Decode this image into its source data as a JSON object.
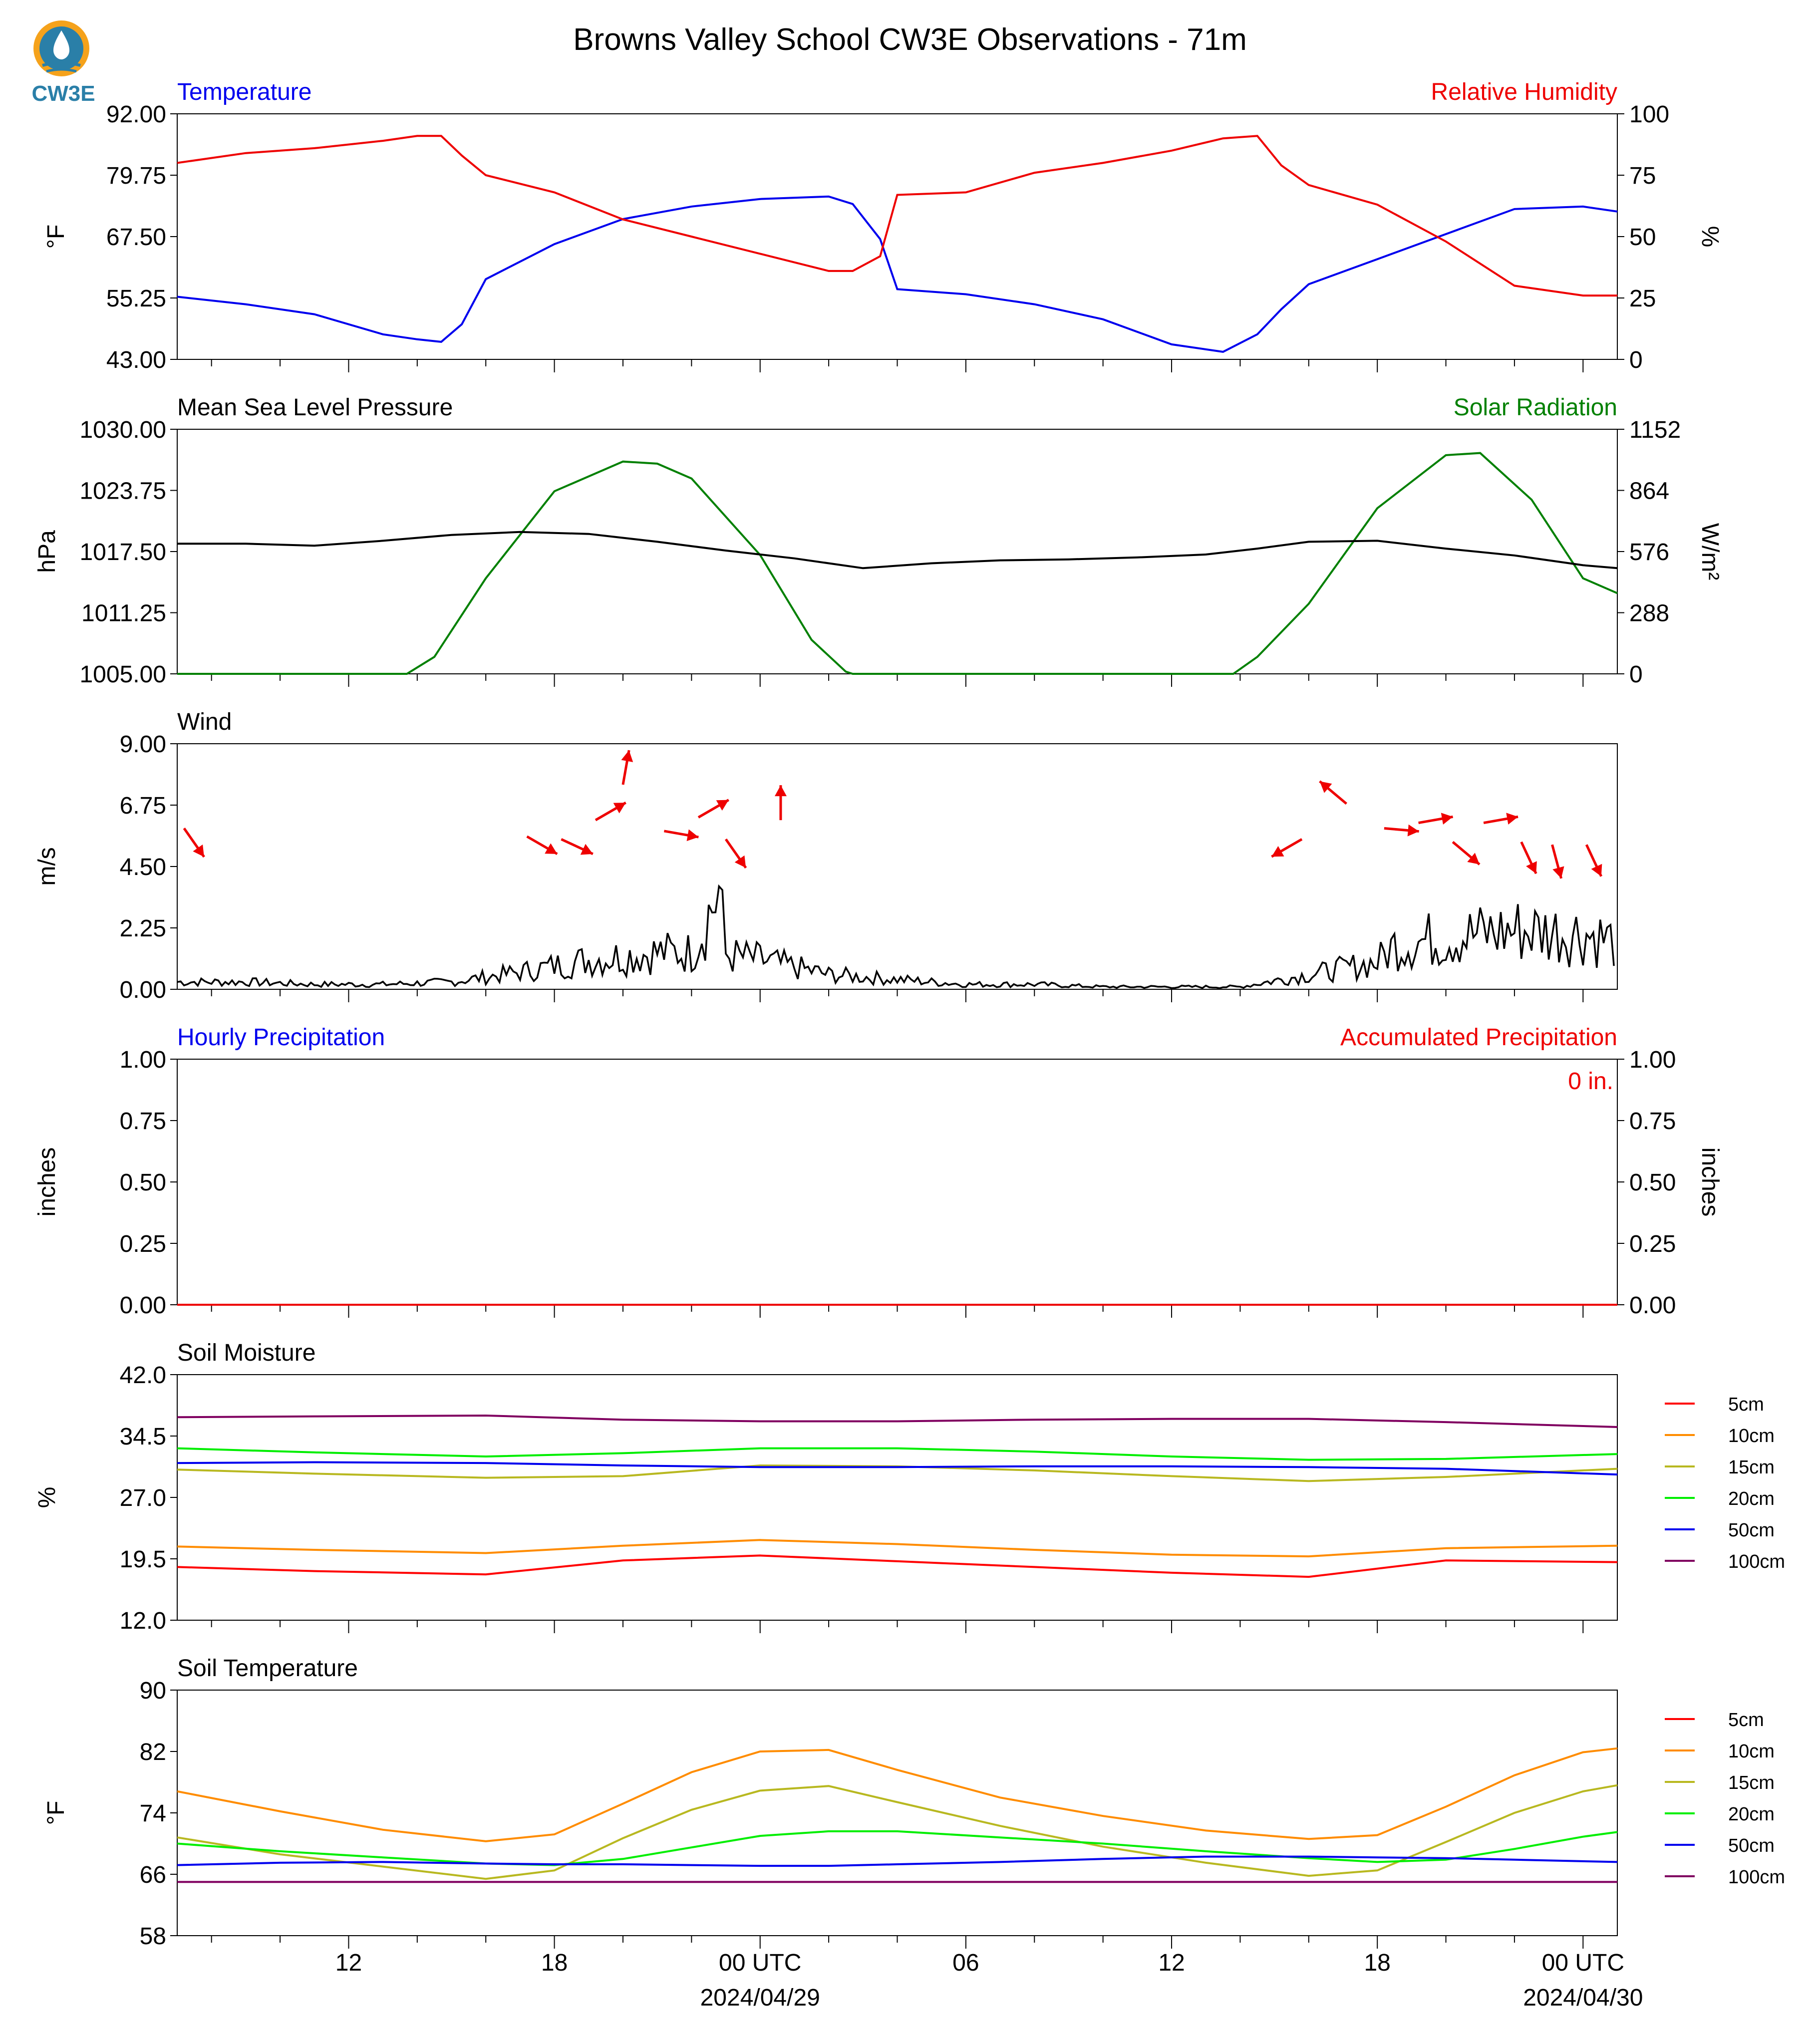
{
  "title": "Browns Valley School CW3E Observations - 71m",
  "logo_text": "CW3E",
  "time_axis": {
    "tick_labels": [
      "12",
      "18",
      "00 UTC",
      "06",
      "12",
      "18",
      "00 UTC"
    ],
    "date_labels": [
      "2024/04/29",
      "2024/04/30"
    ]
  },
  "colors": {
    "temperature": "#0000ee",
    "humidity": "#ee0000",
    "pressure": "#000000",
    "solar": "#008000",
    "wind": "#000000",
    "wind_arrow": "#ee0000",
    "depth_5cm": "#ff0000",
    "depth_10cm": "#ff8c00",
    "depth_15cm": "#b8b820",
    "depth_20cm": "#00ee00",
    "depth_50cm": "#0000ee",
    "depth_100cm": "#800060"
  },
  "chart_data": [
    {
      "id": "temp_rh",
      "type": "line",
      "left_title": "Temperature",
      "right_title": "Relative Humidity",
      "ylabel": "°F",
      "ylabel_right": "%",
      "ylim": [
        43,
        92
      ],
      "ylim_right": [
        0,
        100
      ],
      "yticks": [
        "43.00",
        "55.25",
        "67.50",
        "79.75",
        "92.00"
      ],
      "yticks_right": [
        "0",
        "25",
        "50",
        "75",
        "100"
      ],
      "x_hours": [
        7,
        9,
        11,
        13,
        14,
        14.7,
        15.3,
        16,
        18,
        20,
        22,
        24,
        26,
        26.7,
        27.5,
        28,
        30,
        32,
        34,
        36,
        37.5,
        38.5,
        39.2,
        40,
        42,
        44,
        46,
        48,
        49
      ],
      "series": [
        {
          "name": "Temperature",
          "values": [
            55.5,
            54,
            52,
            48,
            47,
            46.5,
            50,
            59,
            66,
            71,
            73.5,
            75,
            75.5,
            74,
            67,
            57,
            56,
            54,
            51,
            46,
            44.5,
            48,
            53,
            58,
            63,
            68,
            73,
            73.5,
            72.5
          ]
        },
        {
          "name": "Relative Humidity",
          "values": [
            80,
            84,
            86,
            89,
            91,
            91,
            83,
            75,
            68,
            57,
            50,
            43,
            36,
            36,
            42,
            67,
            68,
            76,
            80,
            85,
            90,
            91,
            79,
            71,
            63,
            48,
            30,
            26,
            26
          ]
        }
      ]
    },
    {
      "id": "pressure_solar",
      "type": "line",
      "left_title": "Mean Sea Level Pressure",
      "right_title": "Solar Radiation",
      "ylabel": "hPa",
      "ylabel_right": "W/m²",
      "ylim": [
        1005,
        1030
      ],
      "ylim_right": [
        0,
        1152
      ],
      "yticks": [
        "1005.00",
        "1011.25",
        "1017.50",
        "1023.75",
        "1030.00"
      ],
      "yticks_right": [
        "0",
        "288",
        "576",
        "864",
        "1152"
      ],
      "x_hours": [
        7,
        9,
        11,
        13,
        15,
        17,
        19,
        21,
        23,
        25,
        27,
        29,
        31,
        33,
        35,
        37,
        38.5,
        40,
        42,
        44,
        46,
        48,
        49
      ],
      "series": [
        {
          "name": "Mean Sea Level Pressure",
          "values": [
            1018.3,
            1018.3,
            1018.1,
            1018.6,
            1019.2,
            1019.5,
            1019.3,
            1018.5,
            1017.6,
            1016.8,
            1015.8,
            1016.3,
            1016.6,
            1016.7,
            1016.9,
            1017.2,
            1017.8,
            1018.5,
            1018.6,
            1017.8,
            1017.1,
            1016.1,
            1015.8
          ]
        },
        {
          "name": "Solar Radiation",
          "values": [
            0,
            0,
            0,
            0,
            0,
            0,
            0,
            0,
            0,
            0,
            0,
            0,
            0,
            0,
            0,
            0,
            0,
            0,
            0,
            0,
            0,
            0,
            0
          ]
        }
      ],
      "solar_x_hours": [
        7,
        13.7,
        14.5,
        16,
        18,
        20,
        21,
        22,
        24,
        25.5,
        26.5,
        26.7,
        28,
        29,
        37.8,
        38.5,
        40,
        42,
        44,
        45,
        46.5,
        48,
        49
      ],
      "solar_values": [
        0,
        0,
        80,
        450,
        860,
        1000,
        990,
        920,
        560,
        160,
        10,
        0,
        0,
        0,
        0,
        80,
        330,
        780,
        1030,
        1040,
        820,
        450,
        380
      ]
    },
    {
      "id": "wind",
      "type": "line",
      "left_title": "Wind",
      "ylabel": "m/s",
      "ylim": [
        0,
        9
      ],
      "yticks": [
        "0.00",
        "2.25",
        "4.50",
        "6.75",
        "9.00"
      ],
      "x_hours": [
        7,
        9,
        11,
        13,
        15,
        17,
        19,
        21,
        22,
        22.8,
        23,
        24,
        26,
        28,
        30,
        32,
        34,
        36,
        38,
        40,
        42,
        42.5,
        44,
        46,
        48,
        49
      ],
      "series": [
        {
          "name": "Wind Speed",
          "values": [
            0.3,
            0.3,
            0.2,
            0.2,
            0.3,
            0.7,
            1.2,
            1.5,
            1.5,
            4.0,
            1.4,
            1.2,
            0.6,
            0.4,
            0.2,
            0.2,
            0.1,
            0.1,
            0.1,
            0.6,
            1.1,
            1.8,
            2.1,
            2.4,
            2.3,
            1.9
          ]
        }
      ],
      "arrows": [
        {
          "x_hour": 7.2,
          "speed": 5.9,
          "dir_deg": 145
        },
        {
          "x_hour": 17.2,
          "speed": 5.6,
          "dir_deg": 120
        },
        {
          "x_hour": 18.2,
          "speed": 5.5,
          "dir_deg": 115
        },
        {
          "x_hour": 19.2,
          "speed": 6.2,
          "dir_deg": 60
        },
        {
          "x_hour": 20,
          "speed": 7.5,
          "dir_deg": 10
        },
        {
          "x_hour": 21.2,
          "speed": 5.8,
          "dir_deg": 100
        },
        {
          "x_hour": 22.2,
          "speed": 6.3,
          "dir_deg": 60
        },
        {
          "x_hour": 23,
          "speed": 5.5,
          "dir_deg": 145
        },
        {
          "x_hour": 24.6,
          "speed": 6.2,
          "dir_deg": 0
        },
        {
          "x_hour": 39.8,
          "speed": 5.5,
          "dir_deg": 240
        },
        {
          "x_hour": 41.1,
          "speed": 6.8,
          "dir_deg": 310
        },
        {
          "x_hour": 42.2,
          "speed": 5.9,
          "dir_deg": 95
        },
        {
          "x_hour": 43.2,
          "speed": 6.1,
          "dir_deg": 80
        },
        {
          "x_hour": 44.2,
          "speed": 5.4,
          "dir_deg": 130
        },
        {
          "x_hour": 45.1,
          "speed": 6.1,
          "dir_deg": 80
        },
        {
          "x_hour": 46.2,
          "speed": 5.4,
          "dir_deg": 155
        },
        {
          "x_hour": 47.1,
          "speed": 5.3,
          "dir_deg": 165
        },
        {
          "x_hour": 48.1,
          "speed": 5.3,
          "dir_deg": 155
        }
      ]
    },
    {
      "id": "precip",
      "type": "line",
      "left_title": "Hourly Precipitation",
      "right_title": "Accumulated Precipitation",
      "ylabel": "inches",
      "ylabel_right": "inches",
      "ylim": [
        0,
        1
      ],
      "ylim_right": [
        0,
        1
      ],
      "yticks": [
        "0.00",
        "0.25",
        "0.50",
        "0.75",
        "1.00"
      ],
      "yticks_right": [
        "0.00",
        "0.25",
        "0.50",
        "0.75",
        "1.00"
      ],
      "annotation": "0 in.",
      "x_hours": [
        7,
        49
      ],
      "series": [
        {
          "name": "Hourly Precipitation",
          "values": [
            0,
            0
          ]
        },
        {
          "name": "Accumulated Precipitation",
          "values": [
            0,
            0
          ]
        }
      ]
    },
    {
      "id": "soil_moisture",
      "type": "line",
      "left_title": "Soil Moisture",
      "ylabel": "%",
      "ylim": [
        12,
        42
      ],
      "yticks": [
        "12.0",
        "19.5",
        "27.0",
        "34.5",
        "42.0"
      ],
      "legend": [
        "5cm",
        "10cm",
        "15cm",
        "20cm",
        "50cm",
        "100cm"
      ],
      "x_hours": [
        7,
        11,
        16,
        20,
        24,
        28,
        32,
        36,
        40,
        44,
        49
      ],
      "series": [
        {
          "name": "5cm",
          "values": [
            18.5,
            18.0,
            17.6,
            19.3,
            19.9,
            19.2,
            18.5,
            17.8,
            17.3,
            19.3,
            19.1
          ]
        },
        {
          "name": "10cm",
          "values": [
            21.0,
            20.6,
            20.2,
            21.1,
            21.8,
            21.3,
            20.6,
            20.0,
            19.8,
            20.8,
            21.1
          ]
        },
        {
          "name": "15cm",
          "values": [
            30.4,
            29.9,
            29.4,
            29.6,
            30.9,
            30.8,
            30.3,
            29.6,
            29.0,
            29.5,
            30.5
          ]
        },
        {
          "name": "20cm",
          "values": [
            33.0,
            32.5,
            32.0,
            32.4,
            33.0,
            33.0,
            32.6,
            32.0,
            31.6,
            31.7,
            32.3
          ]
        },
        {
          "name": "50cm",
          "values": [
            31.2,
            31.3,
            31.2,
            30.9,
            30.7,
            30.7,
            30.8,
            30.8,
            30.7,
            30.5,
            29.8
          ]
        },
        {
          "name": "100cm",
          "values": [
            36.8,
            36.9,
            37.0,
            36.5,
            36.3,
            36.3,
            36.5,
            36.6,
            36.6,
            36.2,
            35.6
          ]
        }
      ]
    },
    {
      "id": "soil_temperature",
      "type": "line",
      "left_title": "Soil Temperature",
      "ylabel": "°F",
      "ylim": [
        58,
        90
      ],
      "yticks": [
        "58",
        "66",
        "74",
        "82",
        "90"
      ],
      "legend": [
        "5cm",
        "10cm",
        "15cm",
        "20cm",
        "50cm",
        "100cm"
      ],
      "x_hours": [
        7,
        10,
        13,
        16,
        18,
        20,
        22,
        24,
        26,
        28,
        31,
        34,
        37,
        40,
        42,
        44,
        46,
        48,
        49
      ],
      "series": [
        {
          "name": "5cm",
          "values": [
            null,
            null,
            null,
            null,
            null,
            null,
            null,
            null,
            null,
            null,
            null,
            null,
            null,
            null,
            null,
            null,
            null,
            null,
            null
          ]
        },
        {
          "name": "10cm",
          "values": [
            76.8,
            74.2,
            71.8,
            70.3,
            71.2,
            75.2,
            79.3,
            82.0,
            82.2,
            79.6,
            76.0,
            73.6,
            71.7,
            70.6,
            71.1,
            74.8,
            78.9,
            81.9,
            82.4
          ]
        },
        {
          "name": "15cm",
          "values": [
            70.8,
            68.6,
            67.0,
            65.4,
            66.5,
            70.7,
            74.4,
            76.9,
            77.5,
            75.4,
            72.3,
            69.6,
            67.5,
            65.8,
            66.5,
            70.2,
            74.0,
            76.8,
            77.6
          ]
        },
        {
          "name": "20cm",
          "values": [
            70.0,
            69.0,
            68.2,
            67.4,
            67.2,
            68.0,
            69.5,
            71.0,
            71.6,
            71.6,
            70.8,
            70.0,
            69.0,
            68.1,
            67.6,
            67.9,
            69.3,
            70.9,
            71.5
          ]
        },
        {
          "name": "50cm",
          "values": [
            67.2,
            67.5,
            67.6,
            67.4,
            67.3,
            67.3,
            67.2,
            67.1,
            67.1,
            67.3,
            67.6,
            68.0,
            68.3,
            68.3,
            68.2,
            68.1,
            67.9,
            67.7,
            67.6
          ]
        },
        {
          "name": "100cm",
          "values": [
            65.0,
            65.0,
            65.0,
            65.0,
            65.0,
            65.0,
            65.0,
            65.0,
            65.0,
            65.0,
            65.0,
            65.0,
            65.0,
            65.0,
            65.0,
            65.0,
            65.0,
            65.0,
            65.0
          ]
        }
      ]
    }
  ]
}
